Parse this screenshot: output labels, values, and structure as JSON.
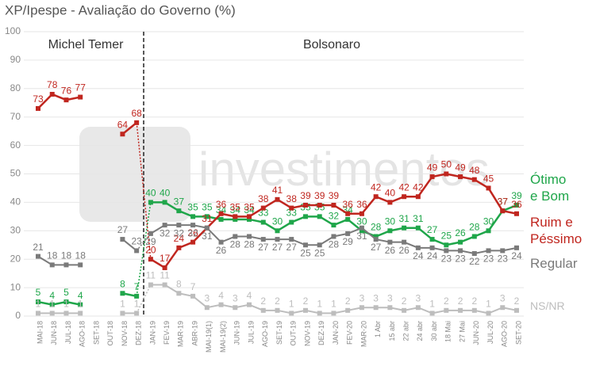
{
  "chart_data": {
    "type": "line",
    "title": "XP/Ipespe - Avaliação do Governo (%)",
    "watermark": "investimentos",
    "annotations": [
      "Michel Temer",
      "Bolsonaro"
    ],
    "categories": [
      "MAI-18",
      "JUN-18",
      "JUL-18",
      "AGO-18",
      "SET-18",
      "OUT-18",
      "NOV-18",
      "DEZ-18",
      "JAN-19",
      "FEV-19",
      "MAR-19",
      "ABR-19",
      "MAI-19(1)",
      "MAI-19(2)",
      "JUN-19",
      "JUL-19",
      "AGO-19",
      "SET-19",
      "OUT-19",
      "NOV-19",
      "DEZ-19",
      "JAN-20",
      "FEV-20",
      "MAR-20",
      "1 Abr",
      "15 abr",
      "22 abr",
      "24 abr",
      "30 abr",
      "18 Mai",
      "27 Mai",
      "JUN-20",
      "JUL-20",
      "AGO-20",
      "SET-20"
    ],
    "series": [
      {
        "name": "Ótimo e Bom",
        "color": "#1fa64a",
        "values": [
          5,
          4,
          5,
          4,
          null,
          null,
          8,
          7,
          40,
          40,
          37,
          35,
          35,
          34,
          34,
          34,
          33,
          30,
          33,
          35,
          35,
          32,
          34,
          30,
          28,
          30,
          31,
          31,
          27,
          25,
          26,
          28,
          30,
          37,
          39
        ]
      },
      {
        "name": "Ruim e Péssimo",
        "color": "#c0261f",
        "values": [
          73,
          78,
          76,
          77,
          null,
          null,
          64,
          68,
          20,
          17,
          24,
          26,
          31,
          36,
          35,
          35,
          38,
          41,
          38,
          39,
          39,
          39,
          36,
          36,
          42,
          40,
          42,
          42,
          49,
          50,
          49,
          48,
          45,
          37,
          36
        ]
      },
      {
        "name": "Regular",
        "color": "#7a7a7a",
        "values": [
          21,
          18,
          18,
          18,
          null,
          null,
          27,
          23,
          29,
          32,
          32,
          32,
          31,
          26,
          28,
          28,
          27,
          27,
          27,
          25,
          25,
          28,
          29,
          31,
          27,
          26,
          26,
          24,
          24,
          23,
          23,
          22,
          23,
          23,
          24
        ]
      },
      {
        "name": "NS/NR",
        "color": "#bdbdbd",
        "values": [
          1,
          1,
          1,
          1,
          null,
          null,
          1,
          1,
          11,
          11,
          8,
          7,
          3,
          4,
          3,
          4,
          2,
          2,
          1,
          2,
          1,
          1,
          2,
          3,
          3,
          3,
          2,
          3,
          1,
          2,
          2,
          2,
          1,
          3,
          2
        ]
      }
    ],
    "ylim": [
      0,
      100
    ],
    "yticks": [
      0,
      10,
      20,
      30,
      40,
      50,
      60,
      70,
      80,
      90,
      100
    ],
    "grid": true
  }
}
